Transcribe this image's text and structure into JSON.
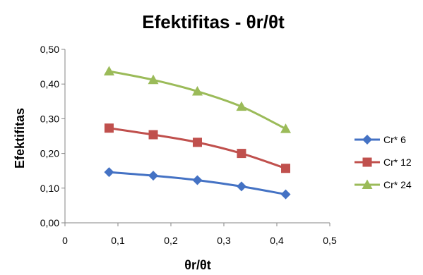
{
  "chart_data": {
    "type": "line",
    "title": "Efektifitas - θr/θt",
    "xlabel": "θr/θt",
    "ylabel": "Efektifitas",
    "xlim": [
      0,
      0.5
    ],
    "ylim": [
      0,
      0.5
    ],
    "x_ticks": [
      "0",
      "0,1",
      "0,2",
      "0,3",
      "0,4",
      "0,5"
    ],
    "y_ticks": [
      "0,00",
      "0,10",
      "0,20",
      "0,30",
      "0,40",
      "0,50"
    ],
    "grid": false,
    "legend_position": "right",
    "x": [
      0.0833,
      0.1667,
      0.25,
      0.3333,
      0.4167
    ],
    "series": [
      {
        "name": "Cr* 6",
        "values": [
          0.146,
          0.136,
          0.123,
          0.105,
          0.082
        ],
        "color": "#4472C4",
        "marker": "diamond"
      },
      {
        "name": "Cr* 12",
        "values": [
          0.273,
          0.254,
          0.232,
          0.2,
          0.157
        ],
        "color": "#C0504D",
        "marker": "square"
      },
      {
        "name": "Cr* 24",
        "values": [
          0.437,
          0.412,
          0.379,
          0.335,
          0.271
        ],
        "color": "#9BBB59",
        "marker": "triangle"
      }
    ]
  }
}
